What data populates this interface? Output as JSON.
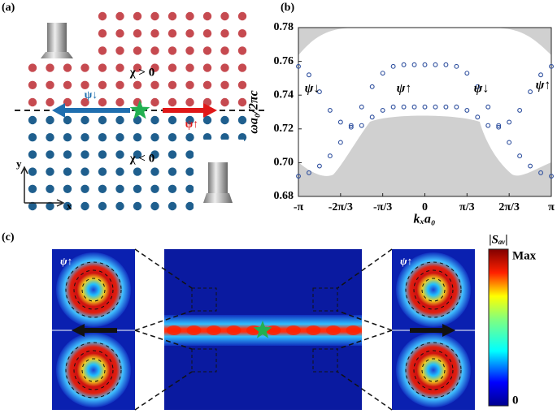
{
  "panel_a": {
    "label": "(a)",
    "chi_pos": "χ > 0",
    "chi_neg": "χ < 0",
    "psi_down": "ψ↓",
    "psi_up": "ψ↑",
    "axis_y": "y",
    "axis_x": "x"
  },
  "chart_data": {
    "type": "scatter",
    "panel_label": "(b)",
    "ylabel": "ωa₀/2πc",
    "xlabel": "kₓa₀",
    "xlim": [
      -3.1416,
      3.1416
    ],
    "ylim": [
      0.68,
      0.78
    ],
    "yticks": [
      0.68,
      {
        "value": 0.7,
        "label": "0.70"
      },
      0.72,
      0.74,
      0.76,
      0.78
    ],
    "xticks": [
      {
        "value": -3.1416,
        "label": "-π"
      },
      {
        "value": -2.0944,
        "label": "-2π/3"
      },
      {
        "value": -1.0472,
        "label": "-π/3"
      },
      {
        "value": 0,
        "label": "0"
      },
      {
        "value": 1.0472,
        "label": "π/3"
      },
      {
        "value": 2.0944,
        "label": "2π/3"
      },
      {
        "value": 3.1416,
        "label": "π"
      }
    ],
    "x": [
      -3.1416,
      -2.8798,
      -2.618,
      -2.3562,
      -2.0944,
      -1.8326,
      -1.5708,
      -1.309,
      -1.0472,
      -0.7854,
      -0.5236,
      -0.2618,
      0,
      0.2618,
      0.5236,
      0.7854,
      1.0472,
      1.309,
      1.5708,
      1.8326,
      2.0944,
      2.3562,
      2.618,
      2.8798,
      3.1416
    ],
    "series": [
      {
        "color": "#2e4f9e",
        "values": [
          0.757,
          0.752,
          0.742,
          0.731,
          0.724,
          0.721,
          0.722,
          0.727,
          0.731,
          0.733,
          0.733,
          0.733,
          0.733,
          0.733,
          0.733,
          0.733,
          0.731,
          0.727,
          0.722,
          0.721,
          0.724,
          0.731,
          0.742,
          0.752,
          0.757
        ]
      },
      {
        "color": "#2e4f9e",
        "values": [
          0.692,
          0.694,
          0.698,
          0.704,
          0.712,
          0.722,
          0.733,
          0.745,
          0.753,
          0.757,
          0.758,
          0.758,
          0.758,
          0.758,
          0.758,
          0.757,
          0.753,
          0.745,
          0.733,
          0.722,
          0.712,
          0.704,
          0.698,
          0.694,
          0.692
        ]
      }
    ],
    "annotations": [
      "ψ↓",
      "ψ↑",
      "ψ↓",
      "ψ↑"
    ]
  },
  "panel_c": {
    "label": "(c)",
    "colorbar_title": "|Sₐᵥ|",
    "colorbar_max": "Max",
    "colorbar_min": "0",
    "inset_left": "ψ↑",
    "inset_right": "ψ↑"
  }
}
